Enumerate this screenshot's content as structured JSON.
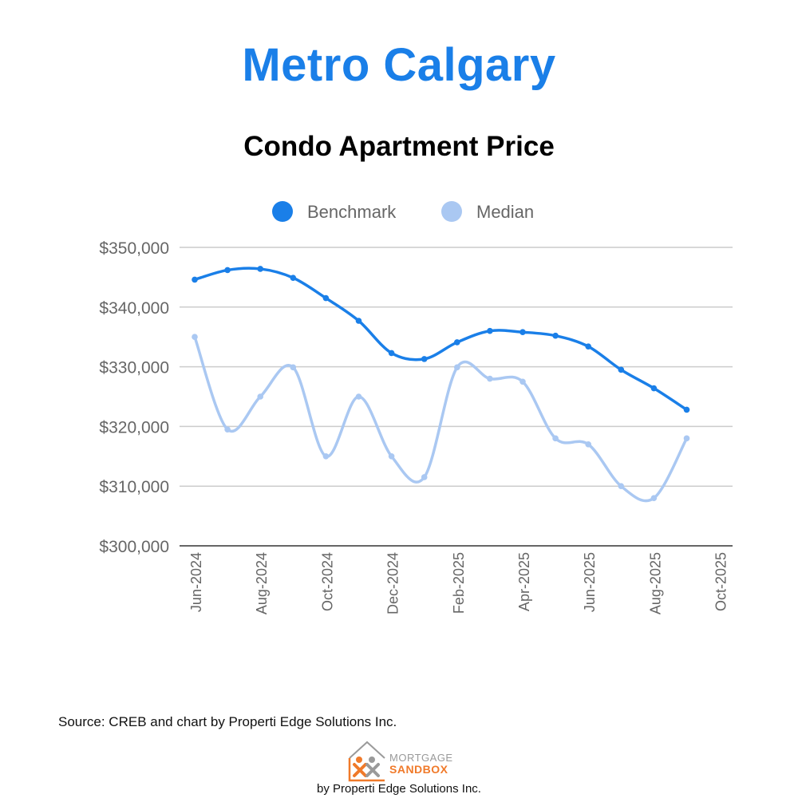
{
  "header": {
    "region": "Metro Calgary",
    "title": "Condo Apartment Price"
  },
  "footer": {
    "source": "Source: CREB and chart by Properti Edge Solutions Inc.",
    "logo_line1": "MORTGAGE",
    "logo_line2": "SANDBOX",
    "byline": "by Properti Edge Solutions Inc."
  },
  "colors": {
    "title": "#1a7fe8",
    "benchmark": "#1a7fe8",
    "median": "#aac8f2",
    "grid": "#cccccc",
    "tick_text": "#666666",
    "logo_orange": "#f07a2a",
    "logo_gray": "#9a9a9a"
  },
  "chart_data": {
    "type": "line",
    "title": "Condo Apartment Price",
    "legend_position": "top-center",
    "grid": true,
    "ylim": [
      300000,
      350000
    ],
    "y_ticks": [
      "$300,000",
      "$310,000",
      "$320,000",
      "$330,000",
      "$340,000",
      "$350,000"
    ],
    "y_tick_values": [
      300000,
      310000,
      320000,
      330000,
      340000,
      350000
    ],
    "x_ticks": [
      "Jun-2024",
      "Aug-2024",
      "Oct-2024",
      "Dec-2024",
      "Feb-2025",
      "Apr-2025",
      "Jun-2025",
      "Aug-2025",
      "Oct-2025"
    ],
    "x": [
      "2024-06",
      "2024-07",
      "2024-08",
      "2024-09",
      "2024-10",
      "2024-11",
      "2024-12",
      "2025-01",
      "2025-02",
      "2025-03",
      "2025-04",
      "2025-05",
      "2025-06",
      "2025-07",
      "2025-08",
      "2025-09"
    ],
    "series": [
      {
        "name": "Benchmark",
        "values": [
          344600,
          346200,
          346400,
          344900,
          341500,
          337700,
          332300,
          331300,
          334100,
          336000,
          335800,
          335200,
          333400,
          329500,
          326400,
          322800
        ]
      },
      {
        "name": "Median",
        "values": [
          335000,
          319500,
          325000,
          329900,
          315000,
          325000,
          315000,
          311500,
          329900,
          328000,
          327500,
          318000,
          317000,
          310000,
          308000,
          318000
        ]
      }
    ]
  }
}
